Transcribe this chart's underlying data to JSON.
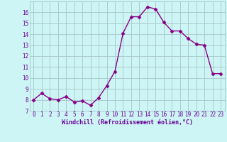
{
  "x": [
    0,
    1,
    2,
    3,
    4,
    5,
    6,
    7,
    8,
    9,
    10,
    11,
    12,
    13,
    14,
    15,
    16,
    17,
    18,
    19,
    20,
    21,
    22,
    23
  ],
  "y": [
    8.0,
    8.6,
    8.1,
    8.0,
    8.3,
    7.8,
    7.9,
    7.5,
    8.2,
    9.3,
    10.6,
    14.1,
    15.6,
    15.6,
    16.5,
    16.3,
    15.1,
    14.3,
    14.3,
    13.6,
    13.1,
    13.0,
    10.4,
    10.4
  ],
  "line_color": "#880088",
  "marker": "D",
  "marker_size": 2.5,
  "background_color": "#cef5f5",
  "grid_color": "#aacccc",
  "xlabel": "Windchill (Refroidissement éolien,°C)",
  "xlabel_color": "#660099",
  "tick_color": "#660099",
  "xlim": [
    -0.5,
    23.5
  ],
  "ylim": [
    7,
    17
  ],
  "yticks": [
    7,
    8,
    9,
    10,
    11,
    12,
    13,
    14,
    15,
    16
  ],
  "xticks": [
    0,
    1,
    2,
    3,
    4,
    5,
    6,
    7,
    8,
    9,
    10,
    11,
    12,
    13,
    14,
    15,
    16,
    17,
    18,
    19,
    20,
    21,
    22,
    23
  ],
  "linewidth": 1.0,
  "tick_fontsize": 5.5,
  "xlabel_fontsize": 6.0
}
